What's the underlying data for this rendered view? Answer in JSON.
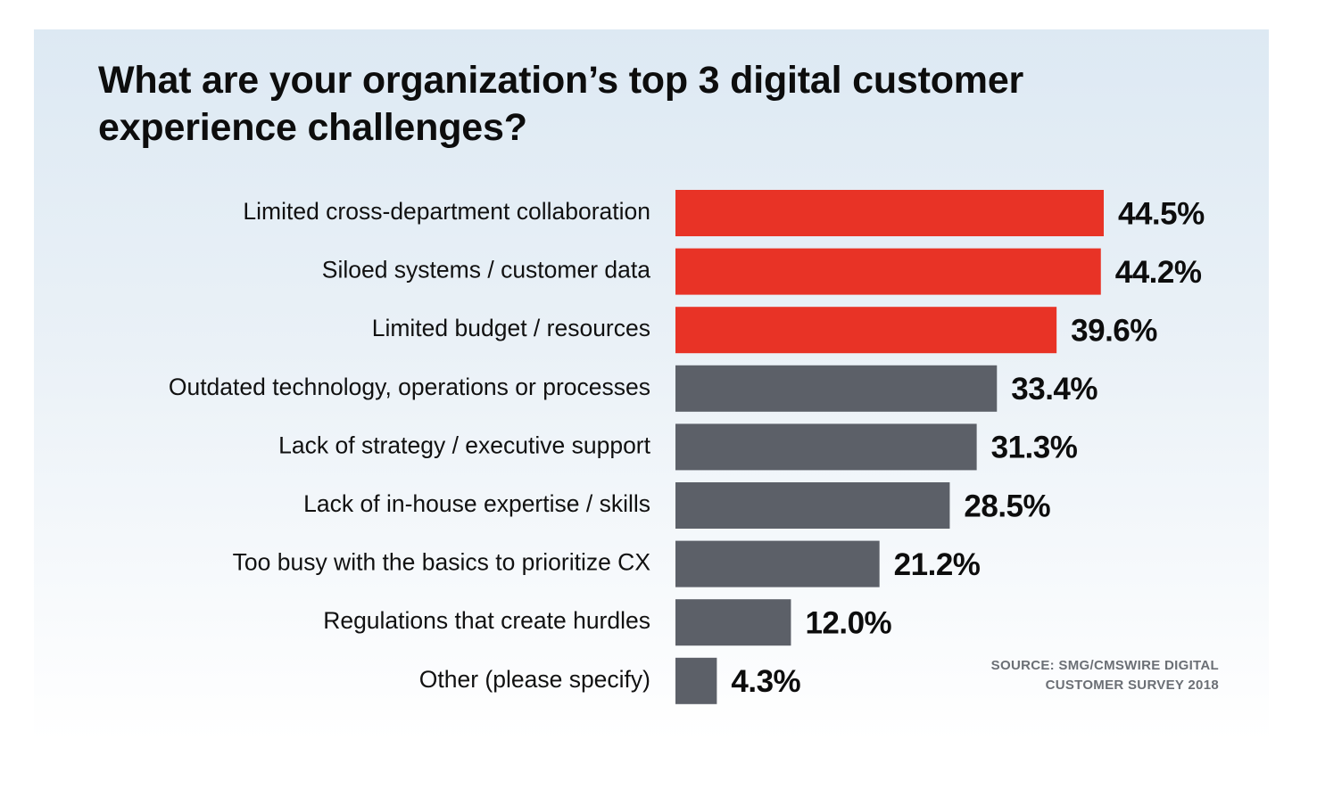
{
  "chart_data": {
    "type": "bar",
    "orientation": "horizontal",
    "title": "What are your organization’s top 3 digital customer experience challenges?",
    "categories": [
      "Limited cross-department collaboration",
      "Siloed systems / customer data",
      "Limited budget / resources",
      "Outdated technology, operations or processes",
      "Lack of strategy / executive support",
      "Lack of in-house expertise / skills",
      "Too busy with the basics to prioritize CX",
      "Regulations that create hurdles",
      "Other (please specify)"
    ],
    "values": [
      44.5,
      44.2,
      39.6,
      33.4,
      31.3,
      28.5,
      21.2,
      12.0,
      4.3
    ],
    "value_labels": [
      "44.5%",
      "44.2%",
      "39.6%",
      "33.4%",
      "31.3%",
      "28.5%",
      "21.2%",
      "12.0%",
      "4.3%"
    ],
    "unit": "%",
    "highlight_count": 3,
    "colors": {
      "highlight": "#e83326",
      "default": "#5c6068"
    },
    "xlim": [
      0,
      44.5
    ],
    "grid": false,
    "legend": "none"
  },
  "source": {
    "line1": "SOURCE: SMG/CMSWIRE DIGITAL",
    "line2": "CUSTOMER SURVEY 2018"
  },
  "colors": {
    "background_top": "#dde9f3",
    "background_bottom": "#ffffff",
    "title": "#0d0d0d",
    "source_text": "#6b6f75"
  }
}
